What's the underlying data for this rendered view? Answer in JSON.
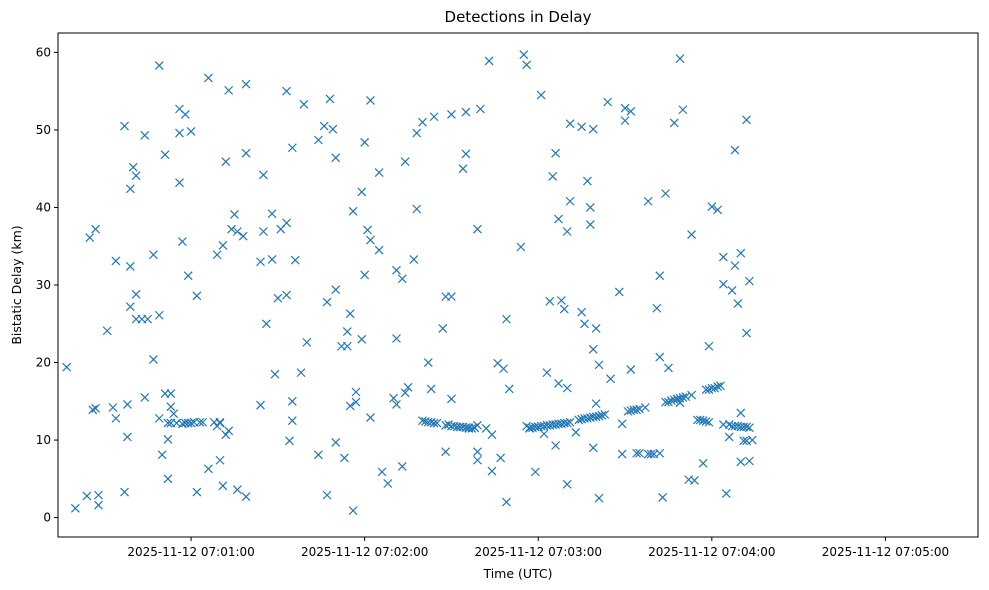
{
  "chart_data": {
    "type": "scatter",
    "title": "Detections in Delay",
    "xlabel": "Time (UTC)",
    "ylabel": "Bistatic Delay (km)",
    "marker": "x",
    "color": "#1f77b4",
    "grid": false,
    "legend": "none",
    "xlim": [
      "2025-11-12 07:00:14",
      "2025-11-12 07:05:32"
    ],
    "ylim": [
      -2.5,
      62.5
    ],
    "xticks": [
      "2025-11-12 07:01:00",
      "2025-11-12 07:02:00",
      "2025-11-12 07:03:00",
      "2025-11-12 07:04:00",
      "2025-11-12 07:05:00"
    ],
    "yticks": [
      0,
      10,
      20,
      30,
      40,
      50,
      60
    ],
    "points": [
      [
        "07:00:17",
        19.4
      ],
      [
        "07:00:20",
        1.2
      ],
      [
        "07:00:24",
        2.8
      ],
      [
        "07:00:25",
        36.1
      ],
      [
        "07:00:26",
        13.9
      ],
      [
        "07:00:27",
        14.1
      ],
      [
        "07:00:27",
        37.2
      ],
      [
        "07:00:28",
        1.6
      ],
      [
        "07:00:28",
        2.9
      ],
      [
        "07:00:31",
        24.1
      ],
      [
        "07:00:33",
        14.2
      ],
      [
        "07:00:34",
        12.8
      ],
      [
        "07:00:34",
        33.1
      ],
      [
        "07:00:37",
        50.5
      ],
      [
        "07:00:37",
        3.3
      ],
      [
        "07:00:38",
        10.4
      ],
      [
        "07:00:38",
        14.6
      ],
      [
        "07:00:39",
        27.2
      ],
      [
        "07:00:39",
        32.4
      ],
      [
        "07:00:39",
        42.4
      ],
      [
        "07:00:40",
        45.2
      ],
      [
        "07:00:41",
        44.1
      ],
      [
        "07:00:41",
        28.8
      ],
      [
        "07:00:41",
        25.6
      ],
      [
        "07:00:43",
        25.6
      ],
      [
        "07:00:44",
        15.5
      ],
      [
        "07:00:44",
        49.3
      ],
      [
        "07:00:45",
        25.6
      ],
      [
        "07:00:47",
        33.9
      ],
      [
        "07:00:47",
        20.4
      ],
      [
        "07:00:49",
        26.1
      ],
      [
        "07:00:49",
        12.8
      ],
      [
        "07:00:49",
        58.3
      ],
      [
        "07:00:50",
        8.1
      ],
      [
        "07:00:51",
        46.8
      ],
      [
        "07:00:51",
        16.0
      ],
      [
        "07:00:52",
        12.2
      ],
      [
        "07:00:52",
        10.1
      ],
      [
        "07:00:52",
        5.0
      ],
      [
        "07:00:53",
        12.2
      ],
      [
        "07:00:53",
        14.3
      ],
      [
        "07:00:53",
        16.0
      ],
      [
        "07:00:54",
        13.4
      ],
      [
        "07:00:55",
        12.2
      ],
      [
        "07:00:56",
        43.2
      ],
      [
        "07:00:56",
        49.6
      ],
      [
        "07:00:56",
        52.7
      ],
      [
        "07:00:57",
        12.1
      ],
      [
        "07:00:57",
        35.6
      ],
      [
        "07:00:58",
        52.0
      ],
      [
        "07:00:58",
        12.2
      ],
      [
        "07:00:59",
        12.2
      ],
      [
        "07:00:59",
        31.2
      ],
      [
        "07:01:00",
        49.8
      ],
      [
        "07:01:00",
        12.2
      ],
      [
        "07:01:01",
        12.3
      ],
      [
        "07:01:02",
        28.6
      ],
      [
        "07:01:02",
        3.3
      ],
      [
        "07:01:03",
        12.3
      ],
      [
        "07:01:04",
        12.3
      ],
      [
        "07:01:06",
        56.7
      ],
      [
        "07:01:06",
        6.3
      ],
      [
        "07:01:08",
        12.3
      ],
      [
        "07:01:09",
        33.9
      ],
      [
        "07:01:09",
        11.8
      ],
      [
        "07:01:10",
        12.3
      ],
      [
        "07:01:10",
        12.2
      ],
      [
        "07:01:10",
        7.4
      ],
      [
        "07:01:11",
        35.1
      ],
      [
        "07:01:11",
        4.1
      ],
      [
        "07:01:12",
        10.7
      ],
      [
        "07:01:12",
        45.9
      ],
      [
        "07:01:13",
        55.1
      ],
      [
        "07:01:13",
        11.2
      ],
      [
        "07:01:14",
        37.2
      ],
      [
        "07:01:15",
        39.1
      ],
      [
        "07:01:16",
        36.9
      ],
      [
        "07:01:16",
        3.6
      ],
      [
        "07:01:18",
        36.3
      ],
      [
        "07:01:19",
        47.0
      ],
      [
        "07:01:19",
        2.7
      ],
      [
        "07:01:19",
        55.9
      ],
      [
        "07:01:24",
        33.0
      ],
      [
        "07:01:24",
        14.5
      ],
      [
        "07:01:25",
        44.2
      ],
      [
        "07:01:25",
        36.9
      ],
      [
        "07:01:26",
        25.0
      ],
      [
        "07:01:28",
        39.2
      ],
      [
        "07:01:28",
        33.3
      ],
      [
        "07:01:29",
        18.5
      ],
      [
        "07:01:30",
        28.3
      ],
      [
        "07:01:31",
        37.2
      ],
      [
        "07:01:33",
        38.0
      ],
      [
        "07:01:33",
        28.7
      ],
      [
        "07:01:33",
        55.0
      ],
      [
        "07:01:34",
        9.9
      ],
      [
        "07:01:35",
        12.5
      ],
      [
        "07:01:35",
        15.0
      ],
      [
        "07:01:35",
        47.7
      ],
      [
        "07:01:36",
        33.2
      ],
      [
        "07:01:38",
        18.7
      ],
      [
        "07:01:39",
        53.3
      ],
      [
        "07:01:40",
        22.6
      ],
      [
        "07:01:44",
        8.1
      ],
      [
        "07:01:44",
        48.7
      ],
      [
        "07:01:46",
        50.5
      ],
      [
        "07:01:47",
        2.9
      ],
      [
        "07:01:47",
        27.8
      ],
      [
        "07:01:48",
        54.0
      ],
      [
        "07:01:49",
        50.1
      ],
      [
        "07:01:50",
        46.4
      ],
      [
        "07:01:50",
        29.4
      ],
      [
        "07:01:50",
        9.7
      ],
      [
        "07:01:52",
        22.1
      ],
      [
        "07:01:53",
        7.7
      ],
      [
        "07:01:54",
        22.1
      ],
      [
        "07:01:54",
        24.0
      ],
      [
        "07:01:55",
        26.3
      ],
      [
        "07:01:55",
        14.4
      ],
      [
        "07:01:56",
        39.5
      ],
      [
        "07:01:56",
        0.9
      ],
      [
        "07:01:57",
        14.9
      ],
      [
        "07:01:57",
        16.2
      ],
      [
        "07:01:59",
        23.0
      ],
      [
        "07:01:59",
        42.0
      ],
      [
        "07:02:00",
        31.3
      ],
      [
        "07:02:00",
        48.4
      ],
      [
        "07:02:01",
        37.1
      ],
      [
        "07:02:02",
        35.8
      ],
      [
        "07:02:02",
        12.9
      ],
      [
        "07:02:02",
        53.8
      ],
      [
        "07:02:05",
        34.5
      ],
      [
        "07:02:05",
        44.5
      ],
      [
        "07:02:06",
        5.9
      ],
      [
        "07:02:08",
        4.4
      ],
      [
        "07:02:10",
        15.4
      ],
      [
        "07:02:11",
        14.6
      ],
      [
        "07:02:11",
        31.9
      ],
      [
        "07:02:11",
        23.1
      ],
      [
        "07:02:13",
        30.8
      ],
      [
        "07:02:13",
        6.6
      ],
      [
        "07:02:14",
        45.9
      ],
      [
        "07:02:14",
        16.1
      ],
      [
        "07:02:15",
        16.8
      ],
      [
        "07:02:17",
        33.3
      ],
      [
        "07:02:18",
        39.8
      ],
      [
        "07:02:18",
        49.6
      ],
      [
        "07:02:20",
        51.0
      ],
      [
        "07:02:20",
        12.5
      ],
      [
        "07:02:21",
        12.4
      ],
      [
        "07:02:22",
        12.3
      ],
      [
        "07:02:22",
        20.0
      ],
      [
        "07:02:23",
        12.3
      ],
      [
        "07:02:23",
        16.6
      ],
      [
        "07:02:24",
        12.2
      ],
      [
        "07:02:24",
        51.7
      ],
      [
        "07:02:25",
        12.2
      ],
      [
        "07:02:27",
        24.4
      ],
      [
        "07:02:28",
        11.9
      ],
      [
        "07:02:28",
        28.5
      ],
      [
        "07:02:28",
        8.5
      ],
      [
        "07:02:29",
        12.0
      ],
      [
        "07:02:30",
        28.5
      ],
      [
        "07:02:30",
        11.8
      ],
      [
        "07:02:30",
        52.0
      ],
      [
        "07:02:30",
        15.3
      ],
      [
        "07:02:31",
        11.8
      ],
      [
        "07:02:32",
        11.7
      ],
      [
        "07:02:33",
        11.7
      ],
      [
        "07:02:33",
        11.7
      ],
      [
        "07:02:34",
        11.7
      ],
      [
        "07:02:34",
        45.0
      ],
      [
        "07:02:35",
        46.9
      ],
      [
        "07:02:35",
        52.3
      ],
      [
        "07:02:35",
        11.6
      ],
      [
        "07:02:36",
        11.6
      ],
      [
        "07:02:36",
        11.5
      ],
      [
        "07:02:37",
        11.5
      ],
      [
        "07:02:38",
        11.6
      ],
      [
        "07:02:38",
        11.6
      ],
      [
        "07:02:39",
        7.4
      ],
      [
        "07:02:39",
        8.5
      ],
      [
        "07:02:39",
        37.2
      ],
      [
        "07:02:39",
        11.9
      ],
      [
        "07:02:40",
        52.7
      ],
      [
        "07:02:42",
        11.5
      ],
      [
        "07:02:43",
        58.9
      ],
      [
        "07:02:44",
        10.7
      ],
      [
        "07:02:44",
        6.0
      ],
      [
        "07:02:46",
        19.9
      ],
      [
        "07:02:47",
        7.7
      ],
      [
        "07:02:48",
        19.2
      ],
      [
        "07:02:49",
        2.0
      ],
      [
        "07:02:49",
        25.6
      ],
      [
        "07:02:50",
        16.6
      ],
      [
        "07:02:54",
        34.9
      ],
      [
        "07:02:55",
        59.7
      ],
      [
        "07:02:56",
        11.8
      ],
      [
        "07:02:56",
        58.4
      ],
      [
        "07:02:57",
        11.5
      ],
      [
        "07:02:57",
        11.6
      ],
      [
        "07:02:58",
        11.6
      ],
      [
        "07:02:59",
        5.9
      ],
      [
        "07:02:59",
        11.7
      ],
      [
        "07:03:00",
        11.7
      ],
      [
        "07:03:00",
        11.7
      ],
      [
        "07:03:01",
        11.8
      ],
      [
        "07:03:01",
        54.5
      ],
      [
        "07:03:02",
        11.8
      ],
      [
        "07:03:02",
        10.8
      ],
      [
        "07:03:03",
        11.9
      ],
      [
        "07:03:03",
        18.7
      ],
      [
        "07:03:04",
        11.9
      ],
      [
        "07:03:04",
        27.9
      ],
      [
        "07:03:05",
        12.0
      ],
      [
        "07:03:05",
        44.0
      ],
      [
        "07:03:06",
        12.0
      ],
      [
        "07:03:06",
        9.3
      ],
      [
        "07:03:06",
        47.0
      ],
      [
        "07:03:07",
        12.1
      ],
      [
        "07:03:07",
        38.5
      ],
      [
        "07:03:07",
        17.3
      ],
      [
        "07:03:08",
        12.1
      ],
      [
        "07:03:08",
        28.0
      ],
      [
        "07:03:09",
        12.2
      ],
      [
        "07:03:09",
        26.9
      ],
      [
        "07:03:10",
        12.2
      ],
      [
        "07:03:10",
        4.3
      ],
      [
        "07:03:10",
        36.9
      ],
      [
        "07:03:10",
        16.7
      ],
      [
        "07:03:11",
        12.3
      ],
      [
        "07:03:11",
        40.8
      ],
      [
        "07:03:11",
        50.8
      ],
      [
        "07:03:13",
        11.0
      ],
      [
        "07:03:14",
        12.6
      ],
      [
        "07:03:15",
        12.7
      ],
      [
        "07:03:15",
        50.4
      ],
      [
        "07:03:15",
        26.5
      ],
      [
        "07:03:16",
        12.8
      ],
      [
        "07:03:16",
        25.0
      ],
      [
        "07:03:17",
        12.8
      ],
      [
        "07:03:17",
        43.4
      ],
      [
        "07:03:18",
        12.9
      ],
      [
        "07:03:18",
        37.8
      ],
      [
        "07:03:18",
        40.0
      ],
      [
        "07:03:19",
        13.0
      ],
      [
        "07:03:19",
        50.1
      ],
      [
        "07:03:19",
        21.7
      ],
      [
        "07:03:19",
        9.0
      ],
      [
        "07:03:20",
        13.0
      ],
      [
        "07:03:20",
        14.7
      ],
      [
        "07:03:20",
        24.4
      ],
      [
        "07:03:21",
        13.1
      ],
      [
        "07:03:21",
        19.7
      ],
      [
        "07:03:21",
        2.5
      ],
      [
        "07:03:22",
        13.2
      ],
      [
        "07:03:23",
        13.3
      ],
      [
        "07:03:24",
        53.6
      ],
      [
        "07:03:25",
        17.9
      ],
      [
        "07:03:28",
        29.1
      ],
      [
        "07:03:29",
        8.2
      ],
      [
        "07:03:29",
        12.1
      ],
      [
        "07:03:30",
        52.8
      ],
      [
        "07:03:30",
        51.2
      ],
      [
        "07:03:31",
        13.7
      ],
      [
        "07:03:32",
        13.8
      ],
      [
        "07:03:32",
        19.1
      ],
      [
        "07:03:32",
        52.4
      ],
      [
        "07:03:33",
        13.9
      ],
      [
        "07:03:34",
        13.9
      ],
      [
        "07:03:34",
        8.3
      ],
      [
        "07:03:35",
        14.0
      ],
      [
        "07:03:35",
        8.3
      ],
      [
        "07:03:37",
        14.2
      ],
      [
        "07:03:38",
        40.8
      ],
      [
        "07:03:38",
        8.2
      ],
      [
        "07:03:39",
        8.2
      ],
      [
        "07:03:40",
        8.2
      ],
      [
        "07:03:41",
        27.0
      ],
      [
        "07:03:42",
        8.3
      ],
      [
        "07:03:42",
        31.2
      ],
      [
        "07:03:42",
        20.7
      ],
      [
        "07:03:43",
        2.6
      ],
      [
        "07:03:44",
        14.9
      ],
      [
        "07:03:44",
        41.8
      ],
      [
        "07:03:45",
        14.9
      ],
      [
        "07:03:45",
        19.3
      ],
      [
        "07:03:46",
        15.1
      ],
      [
        "07:03:47",
        15.2
      ],
      [
        "07:03:47",
        50.9
      ],
      [
        "07:03:48",
        15.3
      ],
      [
        "07:03:48",
        15.3
      ],
      [
        "07:03:49",
        15.4
      ],
      [
        "07:03:49",
        14.8
      ],
      [
        "07:03:49",
        59.2
      ],
      [
        "07:03:50",
        15.5
      ],
      [
        "07:03:50",
        52.6
      ],
      [
        "07:03:51",
        15.6
      ],
      [
        "07:03:52",
        4.9
      ],
      [
        "07:03:53",
        36.5
      ],
      [
        "07:03:53",
        15.8
      ],
      [
        "07:03:54",
        4.8
      ],
      [
        "07:03:55",
        12.6
      ],
      [
        "07:03:56",
        12.6
      ],
      [
        "07:03:57",
        12.5
      ],
      [
        "07:03:57",
        7.0
      ],
      [
        "07:03:58",
        12.4
      ],
      [
        "07:03:58",
        16.5
      ],
      [
        "07:03:59",
        22.1
      ],
      [
        "07:03:59",
        12.3
      ],
      [
        "07:03:59",
        16.5
      ],
      [
        "07:04:00",
        40.1
      ],
      [
        "07:04:00",
        16.7
      ],
      [
        "07:04:01",
        16.7
      ],
      [
        "07:04:02",
        16.9
      ],
      [
        "07:04:02",
        39.7
      ],
      [
        "07:04:03",
        17.0
      ],
      [
        "07:04:04",
        12.0
      ],
      [
        "07:04:04",
        30.1
      ],
      [
        "07:04:04",
        33.6
      ],
      [
        "07:04:05",
        3.1
      ],
      [
        "07:04:06",
        12.0
      ],
      [
        "07:04:06",
        10.4
      ],
      [
        "07:04:07",
        29.3
      ],
      [
        "07:04:07",
        11.8
      ],
      [
        "07:04:08",
        47.4
      ],
      [
        "07:04:08",
        11.8
      ],
      [
        "07:04:08",
        32.5
      ],
      [
        "07:04:09",
        11.8
      ],
      [
        "07:04:09",
        27.6
      ],
      [
        "07:04:10",
        11.7
      ],
      [
        "07:04:10",
        13.5
      ],
      [
        "07:04:10",
        34.1
      ],
      [
        "07:04:10",
        7.2
      ],
      [
        "07:04:11",
        11.7
      ],
      [
        "07:04:11",
        9.9
      ],
      [
        "07:04:12",
        11.7
      ],
      [
        "07:04:12",
        51.3
      ],
      [
        "07:04:12",
        23.8
      ],
      [
        "07:04:12",
        9.9
      ],
      [
        "07:04:13",
        11.6
      ],
      [
        "07:04:13",
        30.5
      ],
      [
        "07:04:13",
        7.3
      ],
      [
        "07:04:14",
        10.0
      ]
    ]
  }
}
